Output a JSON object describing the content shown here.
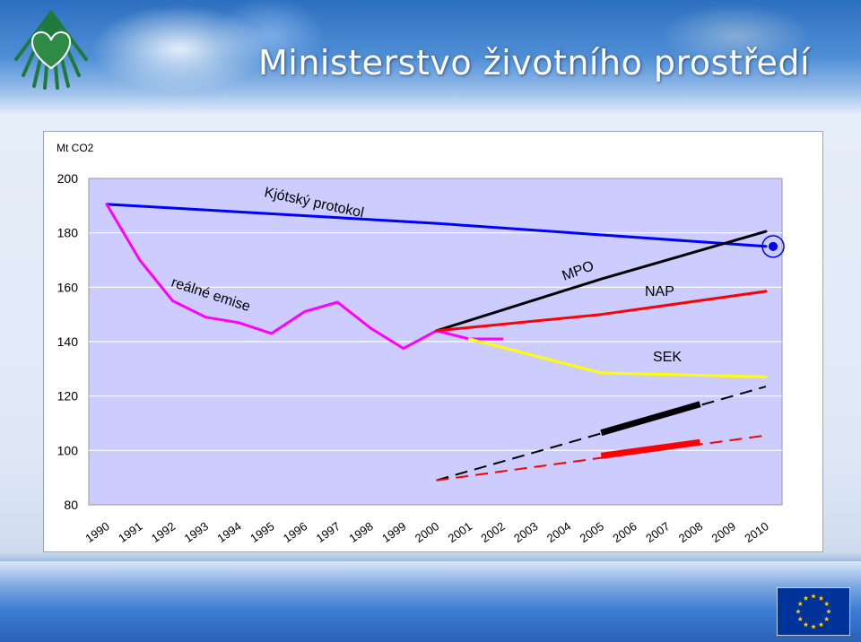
{
  "header": {
    "title": "Ministerstvo životního prostředí"
  },
  "chart_data": {
    "type": "line",
    "ylabel": "Mt CO2",
    "ylim": [
      80,
      200
    ],
    "yticks": [
      80,
      100,
      120,
      140,
      160,
      180,
      200
    ],
    "categories": [
      "1990",
      "1991",
      "1992",
      "1993",
      "1994",
      "1995",
      "1996",
      "1997",
      "1998",
      "1999",
      "2000",
      "2001",
      "2002",
      "2003",
      "2004",
      "2005",
      "2006",
      "2007",
      "2008",
      "2009",
      "2010"
    ],
    "grid": true,
    "series": [
      {
        "name": "Kjótský protokol",
        "color": "#0000ff",
        "style": "solid",
        "x": [
          "1990",
          "2000",
          "2010"
        ],
        "y": [
          190.5,
          183.5,
          175
        ]
      },
      {
        "name": "reálné emise",
        "color": "#ff00ff",
        "style": "solid",
        "x": [
          "1990",
          "1991",
          "1992",
          "1993",
          "1994",
          "1995",
          "1996",
          "1997",
          "1998",
          "1999",
          "2000",
          "2001",
          "2002"
        ],
        "y": [
          190.5,
          170,
          155,
          149,
          147,
          143,
          151,
          154.5,
          145,
          137.5,
          144,
          141,
          141
        ]
      },
      {
        "name": "MPO",
        "color": "#000000",
        "style": "solid",
        "x": [
          "2000",
          "2005",
          "2010"
        ],
        "y": [
          144,
          163,
          180.5
        ]
      },
      {
        "name": "NAP",
        "color": "#ff0000",
        "style": "solid",
        "x": [
          "2000",
          "2005",
          "2010"
        ],
        "y": [
          144,
          150,
          158.5
        ]
      },
      {
        "name": "SEK",
        "color": "#ffff00",
        "style": "solid",
        "x": [
          "2001",
          "2005",
          "2010"
        ],
        "y": [
          141,
          128.5,
          127
        ]
      },
      {
        "name": "",
        "color": "#000000",
        "style": "dashed",
        "x": [
          "2000",
          "2010"
        ],
        "y": [
          89,
          123.5
        ]
      },
      {
        "name": "",
        "color": "#ff0000",
        "style": "dashed",
        "x": [
          "2000",
          "2010"
        ],
        "y": [
          89,
          105.5
        ]
      },
      {
        "name": "",
        "color": "#000000",
        "style": "thick",
        "x": [
          "2005",
          "2008"
        ],
        "y": [
          106.5,
          117
        ]
      },
      {
        "name": "",
        "color": "#ff0000",
        "style": "thick",
        "x": [
          "2005",
          "2008"
        ],
        "y": [
          98,
          103
        ]
      }
    ],
    "labels": [
      {
        "text": "Kjótský protokol"
      },
      {
        "text": "reálné emise"
      },
      {
        "text": "MPO"
      },
      {
        "text": "NAP"
      },
      {
        "text": "SEK"
      }
    ],
    "target_marker": {
      "x": "2010",
      "y": 175,
      "color": "#0000ff"
    }
  }
}
